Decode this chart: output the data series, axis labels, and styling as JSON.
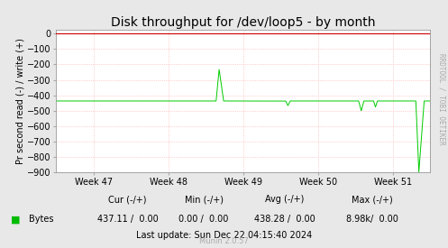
{
  "title": "Disk throughput for /dev/loop5 - by month",
  "ylabel": "Pr second read (-) / write (+)",
  "watermark": "RRDTOOL / TOBI OETIKER",
  "munin_text": "Munin 2.0.57",
  "bg_color": "#e8e8e8",
  "plot_bg_color": "#ffffff",
  "grid_color": "#ffaaaa",
  "line_color": "#00cc00",
  "border_color": "#aaaaaa",
  "hline_color": "#cc0000",
  "ylim": [
    -900,
    25
  ],
  "xlabel_weeks": [
    "Week 47",
    "Week 48",
    "Week 49",
    "Week 50",
    "Week 51"
  ],
  "legend_label": "Bytes",
  "legend_color": "#00bb00",
  "cur_label": "Cur (-/+)",
  "min_label": "Min (-/+)",
  "avg_label": "Avg (-/+)",
  "max_label": "Max (-/+)",
  "cur_val": "437.11 /  0.00",
  "min_val": "0.00 /  0.00",
  "avg_val": "438.28 /  0.00",
  "max_val": "8.98k/  0.00",
  "last_update": "Last update: Sun Dec 22 04:15:40 2024",
  "title_fontsize": 10,
  "axis_fontsize": 7,
  "legend_fontsize": 7,
  "watermark_fontsize": 5.5,
  "munin_fontsize": 6
}
